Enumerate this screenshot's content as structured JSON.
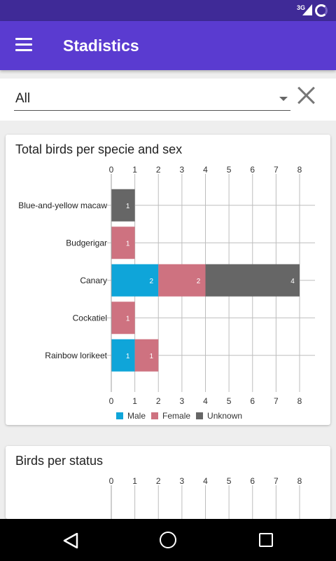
{
  "status_bar": {
    "network": "3G"
  },
  "app_bar": {
    "title": "Stadistics"
  },
  "filter": {
    "value": "All"
  },
  "colors": {
    "male": "#0fa5d9",
    "female": "#ce7280",
    "unknown": "#666666",
    "primary": "#5a3bd0",
    "status": "#3f2a97"
  },
  "charts": [
    {
      "title": "Total birds per specie and sex",
      "chart_data": {
        "type": "bar",
        "orientation": "horizontal",
        "stacked": true,
        "xticks": [
          0,
          1,
          2,
          3,
          4,
          5,
          6,
          7,
          8
        ],
        "categories": [
          "Blue-and-yellow macaw",
          "Budgerigar",
          "Canary",
          "Cockatiel",
          "Rainbow lorikeet"
        ],
        "series": [
          {
            "name": "Male",
            "color": "#0fa5d9",
            "values": [
              0,
              0,
              2,
              0,
              1
            ]
          },
          {
            "name": "Female",
            "color": "#ce7280",
            "values": [
              0,
              1,
              2,
              1,
              1
            ]
          },
          {
            "name": "Unknown",
            "color": "#666666",
            "values": [
              1,
              0,
              4,
              0,
              0
            ]
          }
        ],
        "legend": "bottom"
      }
    },
    {
      "title": "Birds per status",
      "chart_data": {
        "type": "bar",
        "orientation": "horizontal",
        "stacked": true,
        "xticks": [
          0,
          1,
          2,
          3,
          4,
          5,
          6,
          7,
          8
        ],
        "categories": [],
        "series": []
      }
    }
  ]
}
